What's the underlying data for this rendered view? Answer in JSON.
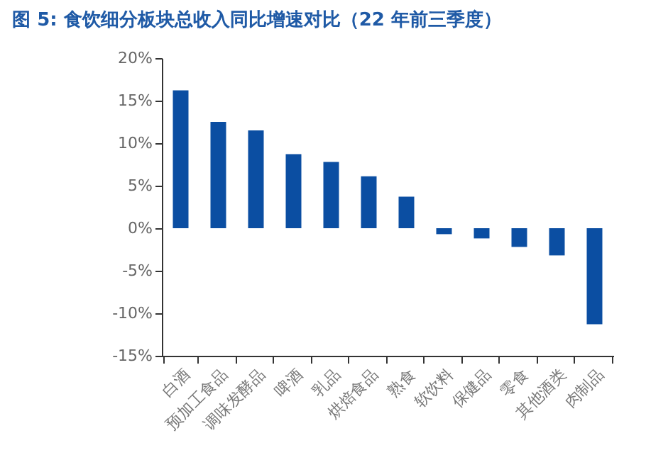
{
  "chart_data": {
    "type": "bar",
    "title": "图 5: 食饮细分板块总收入同比增速对比（22 年前三季度）",
    "categories": [
      "白酒",
      "预加工食品",
      "调味发酵品",
      "啤酒",
      "乳品",
      "烘焙食品",
      "熟食",
      "软饮料",
      "保健品",
      "零食",
      "其他酒类",
      "肉制品"
    ],
    "values": [
      16.2,
      12.5,
      11.5,
      8.7,
      7.8,
      6.1,
      3.7,
      -0.7,
      -1.2,
      -2.2,
      -3.2,
      -11.3
    ],
    "color": "#0b4ea2",
    "ylim": [
      -15,
      20
    ],
    "yticks": [
      {
        "value": -15,
        "label": "-15%"
      },
      {
        "value": -10,
        "label": "-10%"
      },
      {
        "value": -5,
        "label": "-5%"
      },
      {
        "value": 0,
        "label": "0%"
      },
      {
        "value": 5,
        "label": "5%"
      },
      {
        "value": 10,
        "label": "10%"
      },
      {
        "value": 15,
        "label": "15%"
      },
      {
        "value": 20,
        "label": "20%"
      }
    ],
    "grid": false
  }
}
